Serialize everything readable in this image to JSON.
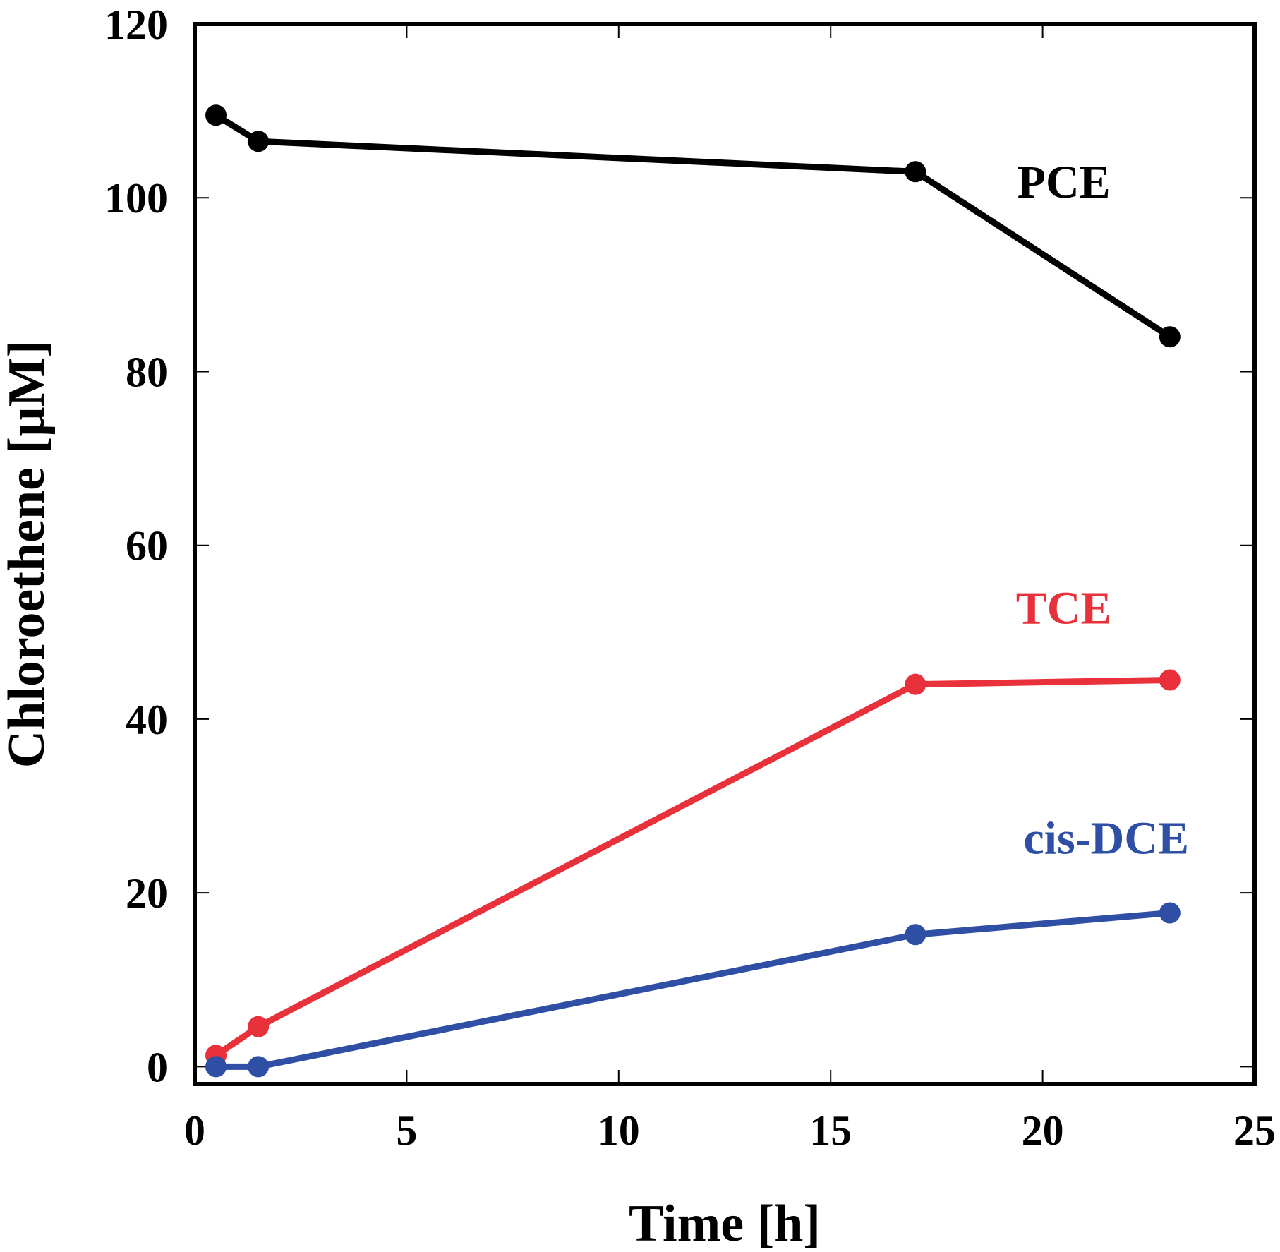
{
  "chart_data": {
    "type": "line",
    "xlabel": "Time [h]",
    "ylabel": "Chloroethene [µM]",
    "xlim": [
      0,
      25
    ],
    "ylim": [
      -2,
      120
    ],
    "xticks": [
      0,
      5,
      10,
      15,
      20,
      25
    ],
    "yticks": [
      0,
      20,
      40,
      60,
      80,
      100,
      120
    ],
    "grid": false,
    "series": [
      {
        "name": "PCE",
        "color": "#000000",
        "x": [
          0.5,
          1.5,
          17,
          23
        ],
        "y": [
          109.5,
          106.5,
          103,
          84
        ],
        "label_at": [
          20.5,
          100
        ]
      },
      {
        "name": "TCE",
        "color": "#e8313a",
        "x": [
          0.5,
          1.5,
          17,
          23
        ],
        "y": [
          1.3,
          4.6,
          44,
          44.5
        ],
        "label_at": [
          20.5,
          51
        ]
      },
      {
        "name": "cis-DCE",
        "color": "#2e4fa3",
        "x": [
          0.5,
          1.5,
          17,
          23
        ],
        "y": [
          0,
          0,
          15.2,
          17.7
        ],
        "label_at": [
          21.5,
          24.5
        ]
      }
    ]
  }
}
